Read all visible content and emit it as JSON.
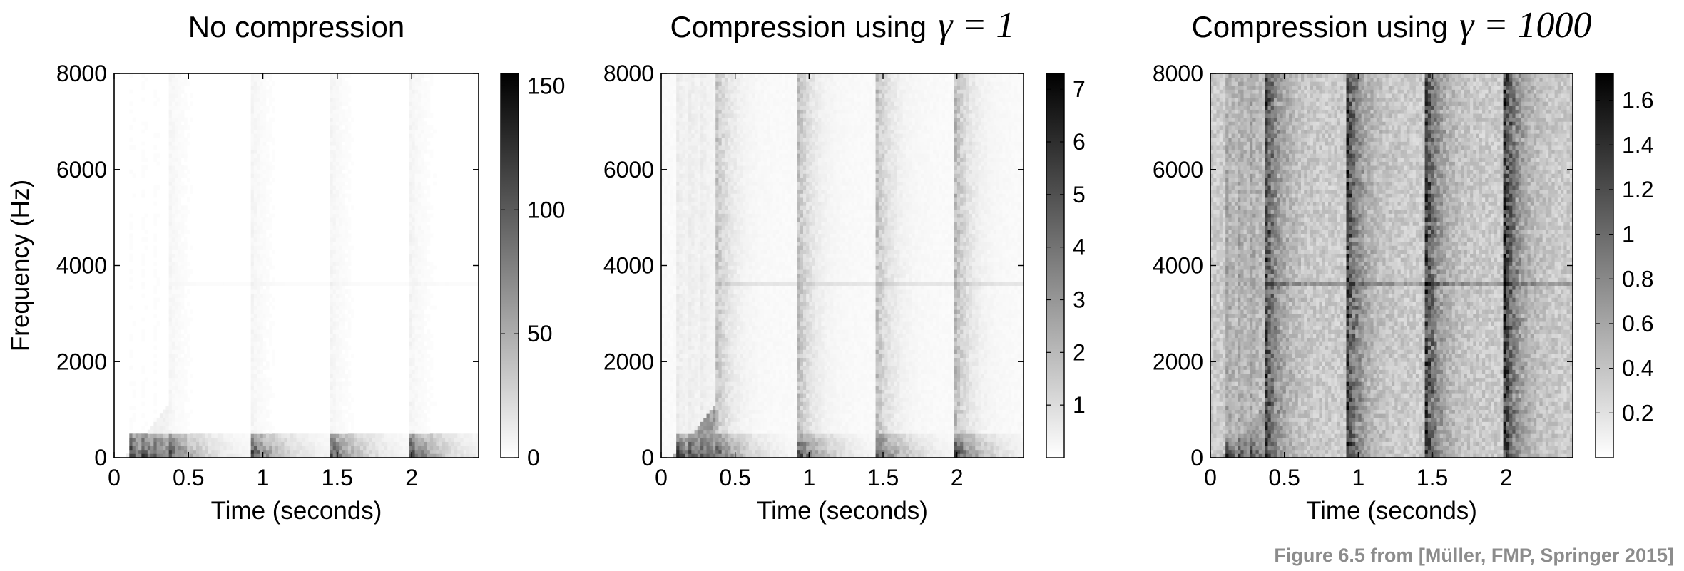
{
  "caption": "Figure 6.5 from [Müller, FMP, Springer 2015]",
  "chart_data": [
    {
      "type": "heatmap",
      "title": "No compression",
      "title_math": "",
      "xlabel": "Time (seconds)",
      "ylabel": "Frequency (Hz)",
      "xlim": [
        0,
        2.45
      ],
      "ylim": [
        0,
        8000
      ],
      "xticks": [
        0,
        0.5,
        1,
        1.5,
        2
      ],
      "xtick_labels": [
        "0",
        "0.5",
        "1",
        "1.5",
        "2"
      ],
      "yticks": [
        0,
        2000,
        4000,
        6000,
        8000
      ],
      "ytick_labels": [
        "0",
        "2000",
        "4000",
        "6000",
        "8000"
      ],
      "colorbar": {
        "min": 0,
        "max": 155,
        "ticks": [
          0,
          50,
          100,
          150
        ],
        "tick_labels": [
          "0",
          "50",
          "100",
          "150"
        ]
      },
      "colormap": [
        "#ffffff",
        "#000000"
      ],
      "note_onsets_s": [
        0.12,
        0.2,
        0.28,
        0.37,
        0.93,
        1.46,
        2.0
      ],
      "intensity": {
        "background": 0.0,
        "band": 0.04,
        "low_freq_max": 0.85
      }
    },
    {
      "type": "heatmap",
      "title": "Compression using",
      "title_math": "γ = 1",
      "xlabel": "Time (seconds)",
      "ylabel": "",
      "xlim": [
        0,
        2.45
      ],
      "ylim": [
        0,
        8000
      ],
      "xticks": [
        0,
        0.5,
        1,
        1.5,
        2
      ],
      "xtick_labels": [
        "0",
        "0.5",
        "1",
        "1.5",
        "2"
      ],
      "yticks": [
        0,
        2000,
        4000,
        6000,
        8000
      ],
      "ytick_labels": [
        "0",
        "2000",
        "4000",
        "6000",
        "8000"
      ],
      "colorbar": {
        "min": 0,
        "max": 7.3,
        "ticks": [
          1,
          2,
          3,
          4,
          5,
          6,
          7
        ],
        "tick_labels": [
          "1",
          "2",
          "3",
          "4",
          "5",
          "6",
          "7"
        ]
      },
      "colormap": [
        "#ffffff",
        "#000000"
      ],
      "note_onsets_s": [
        0.12,
        0.2,
        0.28,
        0.37,
        0.93,
        1.46,
        2.0
      ],
      "intensity": {
        "background": 0.02,
        "band": 0.22,
        "low_freq_max": 0.85
      }
    },
    {
      "type": "heatmap",
      "title": "Compression using",
      "title_math": "γ = 1000",
      "xlabel": "Time (seconds)",
      "ylabel": "",
      "xlim": [
        0,
        2.45
      ],
      "ylim": [
        0,
        8000
      ],
      "xticks": [
        0,
        0.5,
        1,
        1.5,
        2
      ],
      "xtick_labels": [
        "0",
        "0.5",
        "1",
        "1.5",
        "2"
      ],
      "yticks": [
        0,
        2000,
        4000,
        6000,
        8000
      ],
      "ytick_labels": [
        "0",
        "2000",
        "4000",
        "6000",
        "8000"
      ],
      "colorbar": {
        "min": 0,
        "max": 1.72,
        "ticks": [
          0.2,
          0.4,
          0.6,
          0.8,
          1,
          1.2,
          1.4,
          1.6
        ],
        "tick_labels": [
          "0.2",
          "0.4",
          "0.6",
          "0.8",
          "1",
          "1.2",
          "1.4",
          "1.6"
        ]
      },
      "colormap": [
        "#ffffff",
        "#000000"
      ],
      "note_onsets_s": [
        0.12,
        0.2,
        0.28,
        0.37,
        0.93,
        1.46,
        2.0
      ],
      "intensity": {
        "background": 0.2,
        "band": 0.55,
        "low_freq_max": 0.85
      }
    }
  ]
}
